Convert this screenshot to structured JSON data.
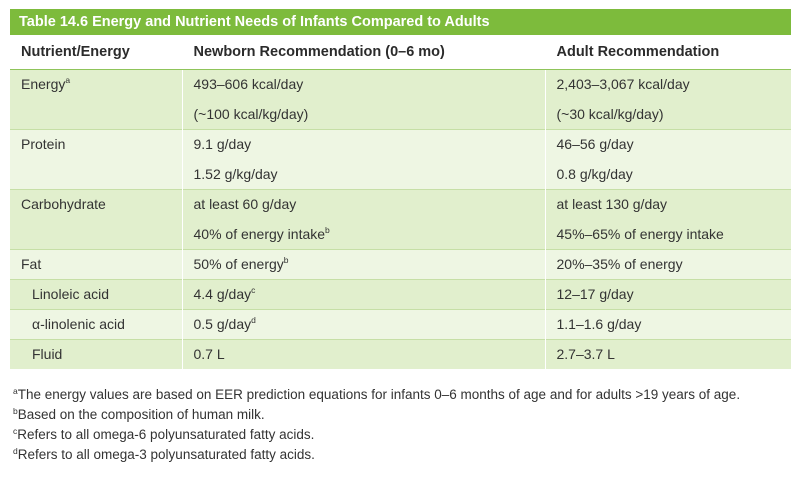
{
  "table": {
    "title": "Table 14.6  Energy and Nutrient Needs of Infants Compared to Adults",
    "headers": [
      "Nutrient/Energy",
      "Newborn Recommendation (0–6 mo)",
      "Adult Recommendation"
    ],
    "rows": [
      {
        "nutrient": "Energy",
        "nutrient_sup": "a",
        "newborn": "493–606 kcal/day",
        "newborn_sup": "",
        "adult": "2,403–3,067 kcal/day"
      },
      {
        "nutrient": "",
        "nutrient_sup": "",
        "newborn": "(~100 kcal/kg/day)",
        "newborn_sup": "",
        "adult": "(~30 kcal/kg/day)"
      },
      {
        "nutrient": "Protein",
        "nutrient_sup": "",
        "newborn": "9.1 g/day",
        "newborn_sup": "",
        "adult": "46–56 g/day"
      },
      {
        "nutrient": "",
        "nutrient_sup": "",
        "newborn": "1.52 g/kg/day",
        "newborn_sup": "",
        "adult": "0.8 g/kg/day"
      },
      {
        "nutrient": "Carbohydrate",
        "nutrient_sup": "",
        "newborn": "at least 60 g/day",
        "newborn_sup": "",
        "adult": "at least 130 g/day"
      },
      {
        "nutrient": "",
        "nutrient_sup": "",
        "newborn": "40% of energy intake",
        "newborn_sup": "b",
        "adult": "45%–65% of energy intake"
      },
      {
        "nutrient": "Fat",
        "nutrient_sup": "",
        "newborn": "50% of energy",
        "newborn_sup": "b",
        "adult": "20%–35% of energy"
      },
      {
        "nutrient": "Linoleic acid",
        "nutrient_sup": "",
        "newborn": "4.4 g/day",
        "newborn_sup": "c",
        "adult": "12–17 g/day"
      },
      {
        "nutrient": "α-linolenic acid",
        "nutrient_sup": "",
        "newborn": "0.5 g/day",
        "newborn_sup": "d",
        "adult": "1.1–1.6 g/day"
      },
      {
        "nutrient": "Fluid",
        "nutrient_sup": "",
        "newborn": "0.7 L",
        "newborn_sup": "",
        "adult": "2.7–3.7 L"
      }
    ]
  },
  "footnotes": [
    {
      "mark": "a",
      "text": "The energy values are based on EER prediction equations for infants 0–6 months of age and for adults >19 years of age."
    },
    {
      "mark": "b",
      "text": "Based on the composition of human milk."
    },
    {
      "mark": "c",
      "text": "Refers to all omega-6 polyunsaturated fatty acids."
    },
    {
      "mark": "d",
      "text": "Refers to all omega-3 polyunsaturated fatty acids."
    }
  ],
  "colors": {
    "title_bar": "#7dbb3c",
    "row_band_dark": "#e1efcd",
    "row_band_light": "#eef6e3"
  }
}
